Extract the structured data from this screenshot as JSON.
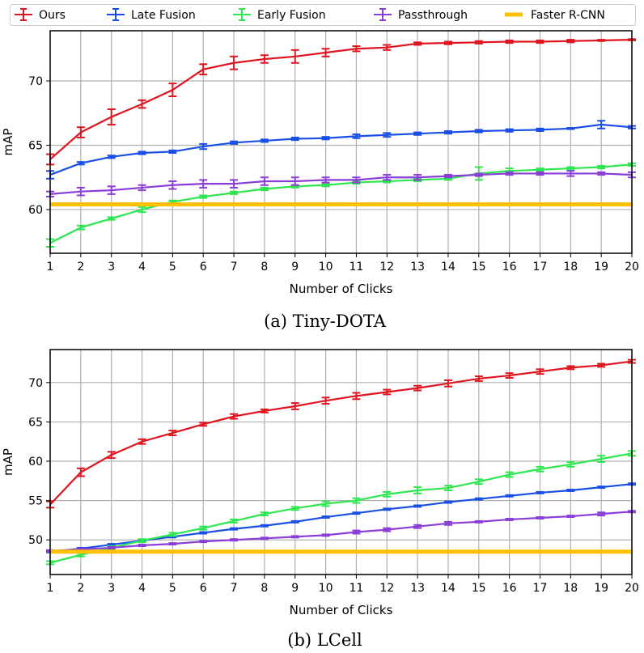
{
  "legend": {
    "placement": "top",
    "entries": [
      {
        "name": "Ours",
        "color": "#e0141e"
      },
      {
        "name": "Late Fusion",
        "color": "#1a4fe6"
      },
      {
        "name": "Early Fusion",
        "color": "#2de650"
      },
      {
        "name": "Passthrough",
        "color": "#8a3dd8"
      },
      {
        "name": "Faster R-CNN",
        "color": "#ffc000"
      }
    ]
  },
  "chart_data": [
    {
      "type": "line",
      "caption": "(a) Tiny-DOTA",
      "xlabel": "Number of Clicks",
      "ylabel": "mAP",
      "x": [
        1,
        2,
        3,
        4,
        5,
        6,
        7,
        8,
        9,
        10,
        11,
        12,
        13,
        14,
        15,
        16,
        17,
        18,
        19,
        20
      ],
      "xlim": [
        1,
        20
      ],
      "ylim": [
        56.6,
        73.9
      ],
      "yticks": [
        60,
        65,
        70
      ],
      "grid": true,
      "series": [
        {
          "name": "Ours",
          "color": "#e0141e",
          "values": [
            63.9,
            66.0,
            67.2,
            68.2,
            69.3,
            70.9,
            71.4,
            71.7,
            71.9,
            72.2,
            72.5,
            72.6,
            72.9,
            72.95,
            73.0,
            73.05,
            73.05,
            73.1,
            73.15,
            73.2
          ],
          "err": [
            0.4,
            0.4,
            0.6,
            0.3,
            0.5,
            0.4,
            0.5,
            0.3,
            0.5,
            0.3,
            0.2,
            0.2,
            0.1,
            0.1,
            0.1,
            0.1,
            0.1,
            0.1,
            0.05,
            0.05
          ]
        },
        {
          "name": "Late Fusion",
          "color": "#1a4fe6",
          "values": [
            62.7,
            63.6,
            64.1,
            64.4,
            64.5,
            64.9,
            65.2,
            65.35,
            65.5,
            65.55,
            65.7,
            65.8,
            65.9,
            66.0,
            66.1,
            66.15,
            66.2,
            66.3,
            66.6,
            66.4
          ],
          "err": [
            0.3,
            0.1,
            0.1,
            0.1,
            0.1,
            0.2,
            0.1,
            0.1,
            0.1,
            0.1,
            0.15,
            0.15,
            0.1,
            0.1,
            0.1,
            0.1,
            0.1,
            0.05,
            0.3,
            0.1
          ]
        },
        {
          "name": "Early Fusion",
          "color": "#2de650",
          "values": [
            57.4,
            58.6,
            59.3,
            60.0,
            60.6,
            61.0,
            61.3,
            61.6,
            61.8,
            61.9,
            62.1,
            62.2,
            62.3,
            62.4,
            62.8,
            63.0,
            63.1,
            63.2,
            63.3,
            63.5
          ],
          "err": [
            0.3,
            0.15,
            0.1,
            0.2,
            0.1,
            0.1,
            0.1,
            0.1,
            0.1,
            0.1,
            0.1,
            0.1,
            0.1,
            0.1,
            0.5,
            0.2,
            0.1,
            0.1,
            0.1,
            0.1
          ]
        },
        {
          "name": "Passthrough",
          "color": "#8a3dd8",
          "values": [
            61.2,
            61.4,
            61.5,
            61.7,
            61.9,
            62.0,
            62.0,
            62.2,
            62.2,
            62.3,
            62.3,
            62.5,
            62.5,
            62.6,
            62.7,
            62.8,
            62.8,
            62.8,
            62.8,
            62.7
          ],
          "err": [
            0.2,
            0.3,
            0.3,
            0.2,
            0.3,
            0.3,
            0.3,
            0.3,
            0.3,
            0.2,
            0.2,
            0.2,
            0.2,
            0.1,
            0.1,
            0.1,
            0.1,
            0.2,
            0.1,
            0.2
          ]
        },
        {
          "name": "Faster R-CNN",
          "color": "#ffc000",
          "constant": 60.4
        }
      ]
    },
    {
      "type": "line",
      "caption": "(b) LCell",
      "xlabel": "Number of Clicks",
      "ylabel": "mAP",
      "x": [
        1,
        2,
        3,
        4,
        5,
        6,
        7,
        8,
        9,
        10,
        11,
        12,
        13,
        14,
        15,
        16,
        17,
        18,
        19,
        20
      ],
      "xlim": [
        1,
        20
      ],
      "ylim": [
        45.6,
        74.2
      ],
      "yticks": [
        50,
        55,
        60,
        65,
        70
      ],
      "grid": true,
      "series": [
        {
          "name": "Ours",
          "color": "#e0141e",
          "values": [
            54.5,
            58.6,
            60.8,
            62.5,
            63.6,
            64.7,
            65.7,
            66.4,
            67.0,
            67.7,
            68.3,
            68.8,
            69.3,
            69.9,
            70.5,
            70.9,
            71.4,
            71.9,
            72.2,
            72.7
          ],
          "err": [
            0.4,
            0.5,
            0.4,
            0.3,
            0.3,
            0.2,
            0.3,
            0.2,
            0.4,
            0.4,
            0.4,
            0.3,
            0.3,
            0.4,
            0.3,
            0.3,
            0.3,
            0.2,
            0.2,
            0.2
          ]
        },
        {
          "name": "Late Fusion",
          "color": "#1a4fe6",
          "values": [
            48.5,
            48.9,
            49.4,
            49.9,
            50.4,
            50.9,
            51.4,
            51.8,
            52.3,
            52.9,
            53.4,
            53.9,
            54.3,
            54.8,
            55.2,
            55.6,
            56.0,
            56.3,
            56.7,
            57.1
          ],
          "err": [
            0.1,
            0.1,
            0.1,
            0.1,
            0.1,
            0.1,
            0.1,
            0.1,
            0.1,
            0.1,
            0.1,
            0.1,
            0.1,
            0.1,
            0.1,
            0.1,
            0.1,
            0.1,
            0.1,
            0.1
          ]
        },
        {
          "name": "Early Fusion",
          "color": "#2de650",
          "values": [
            47.1,
            48.1,
            49.0,
            49.9,
            50.7,
            51.5,
            52.4,
            53.3,
            54.0,
            54.6,
            55.0,
            55.8,
            56.3,
            56.6,
            57.4,
            58.3,
            59.0,
            59.6,
            60.3,
            61.0
          ],
          "err": [
            0.2,
            0.2,
            0.2,
            0.2,
            0.2,
            0.2,
            0.2,
            0.2,
            0.2,
            0.3,
            0.3,
            0.3,
            0.4,
            0.3,
            0.3,
            0.3,
            0.3,
            0.3,
            0.4,
            0.3
          ]
        },
        {
          "name": "Passthrough",
          "color": "#8a3dd8",
          "values": [
            48.6,
            48.8,
            49.0,
            49.3,
            49.5,
            49.8,
            50.0,
            50.2,
            50.4,
            50.6,
            51.0,
            51.3,
            51.7,
            52.1,
            52.3,
            52.6,
            52.8,
            53.0,
            53.3,
            53.6
          ],
          "err": [
            0.1,
            0.1,
            0.1,
            0.1,
            0.1,
            0.1,
            0.1,
            0.1,
            0.1,
            0.1,
            0.2,
            0.2,
            0.2,
            0.2,
            0.1,
            0.1,
            0.1,
            0.1,
            0.2,
            0.1
          ]
        },
        {
          "name": "Faster R-CNN",
          "color": "#ffc000",
          "constant": 48.5
        }
      ]
    }
  ]
}
